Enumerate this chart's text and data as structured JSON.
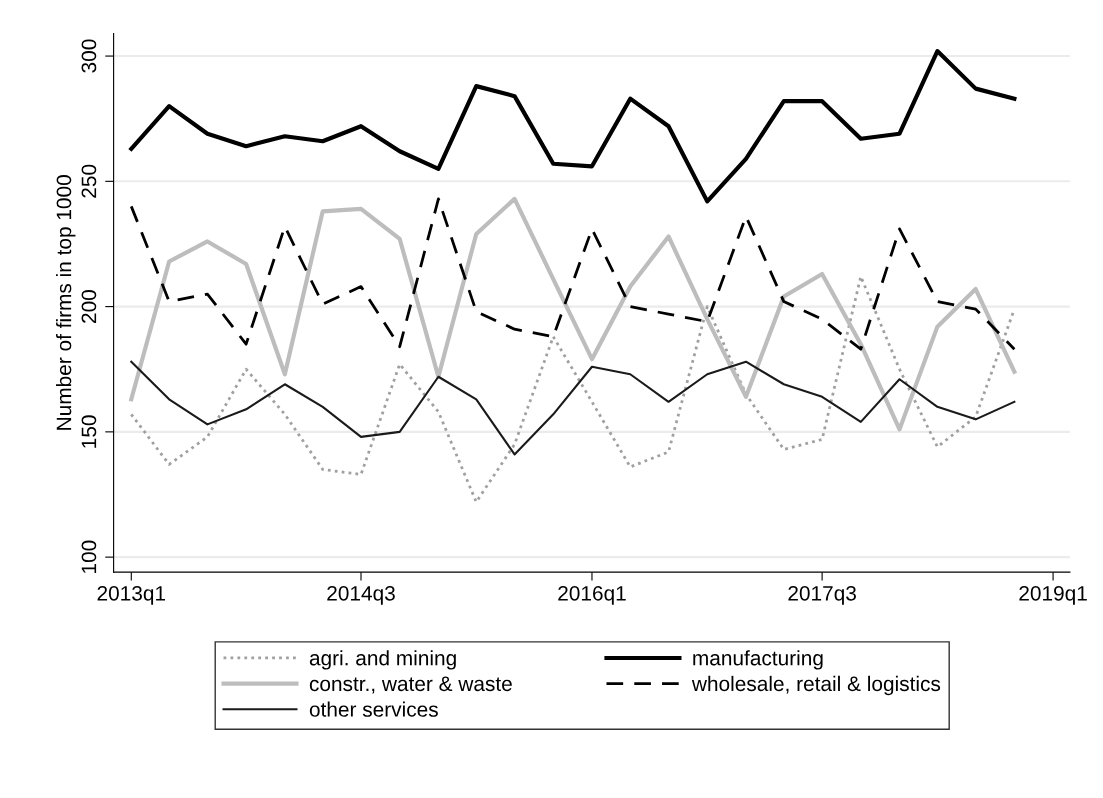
{
  "chart_data": {
    "type": "line",
    "ylabel": "Number of firms in top 1000",
    "x": [
      "2013-01",
      "2013-04",
      "2013-07",
      "2013-10",
      "2014-01",
      "2014-04",
      "2014-07",
      "2014-10",
      "2015-01",
      "2015-04",
      "2015-07",
      "2015-10",
      "2016-01",
      "2016-04",
      "2016-07",
      "2016-10",
      "2017-01",
      "2017-04",
      "2017-07",
      "2017-10",
      "2018-01",
      "2018-04",
      "2018-07",
      "2018-10"
    ],
    "xlim": [
      "2012-11-20",
      "2019-02-10"
    ],
    "xticks": [
      {
        "value": "2013-01",
        "label": "2013q1"
      },
      {
        "value": "2014-07",
        "label": "2014q3"
      },
      {
        "value": "2016-01",
        "label": "2016q1"
      },
      {
        "value": "2017-07",
        "label": "2017q3"
      },
      {
        "value": "2019-01",
        "label": "2019q1"
      }
    ],
    "ylim": [
      94,
      309
    ],
    "yticks": [
      100,
      150,
      200,
      250,
      300
    ],
    "grid": "y",
    "legend": "bottom",
    "series": [
      {
        "name": "agri. and mining",
        "color": "#a0a0a0",
        "line_style": "dotted",
        "values": [
          157,
          137,
          148,
          175,
          157,
          135,
          133,
          177,
          158,
          122,
          145,
          188,
          162,
          136,
          142,
          200,
          165,
          143,
          147,
          212,
          175,
          144,
          156,
          199
        ]
      },
      {
        "name": "manufacturing",
        "color": "#000000",
        "line_style": "solid",
        "values": [
          263,
          280,
          269,
          264,
          268,
          266,
          272,
          262,
          255,
          288,
          284,
          257,
          256,
          283,
          272,
          242,
          259,
          282,
          282,
          267,
          269,
          302,
          287,
          283
        ]
      },
      {
        "name": "constr., water & waste",
        "color": "#bdbdbd",
        "line_style": "solid",
        "values": [
          163,
          218,
          226,
          217,
          173,
          238,
          239,
          227,
          172,
          229,
          243,
          211,
          179,
          208,
          228,
          195,
          164,
          204,
          213,
          185,
          151,
          192,
          207,
          174
        ]
      },
      {
        "name": "wholesale, retail & logistics",
        "color": "#000000",
        "line_style": "dashed",
        "values": [
          240,
          202,
          205,
          185,
          232,
          201,
          208,
          184,
          243,
          198,
          191,
          188,
          231,
          200,
          197,
          194,
          236,
          202,
          195,
          183,
          231,
          202,
          199,
          183
        ]
      },
      {
        "name": "other services",
        "color": "#1a1a1a",
        "line_style": "solid",
        "values": [
          178,
          163,
          153,
          159,
          169,
          160,
          148,
          150,
          172,
          163,
          141,
          157,
          176,
          173,
          162,
          173,
          178,
          169,
          164,
          154,
          171,
          160,
          155,
          162
        ]
      }
    ]
  }
}
